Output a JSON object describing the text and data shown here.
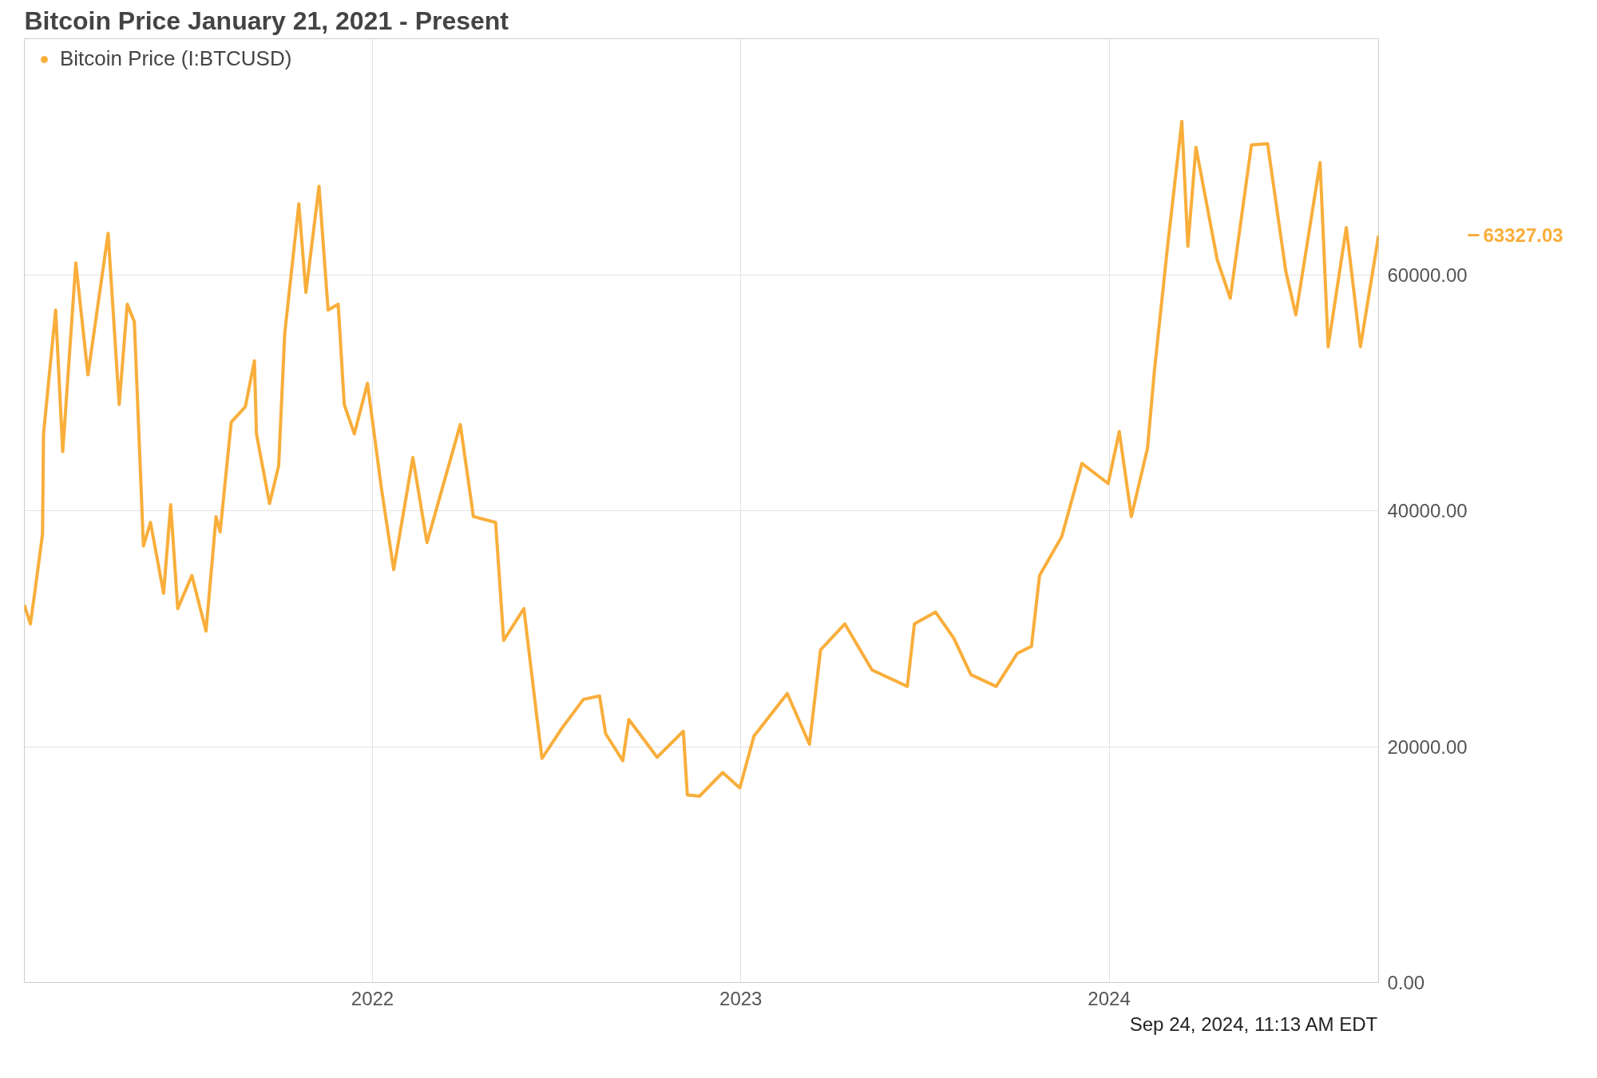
{
  "chart_data": {
    "type": "line",
    "title": "Bitcoin Price January 21, 2021 - Present",
    "x": [
      "2021-01-21",
      "2021-01-27",
      "2021-02-01",
      "2021-02-08",
      "2021-02-09",
      "2021-02-21",
      "2021-02-28",
      "2021-03-13",
      "2021-03-25",
      "2021-04-14",
      "2021-04-25",
      "2021-05-03",
      "2021-05-10",
      "2021-05-19",
      "2021-05-26",
      "2021-06-08",
      "2021-06-15",
      "2021-06-22",
      "2021-07-06",
      "2021-07-20",
      "2021-07-30",
      "2021-08-03",
      "2021-08-14",
      "2021-08-28",
      "2021-09-06",
      "2021-09-08",
      "2021-09-21",
      "2021-09-30",
      "2021-10-06",
      "2021-10-20",
      "2021-10-27",
      "2021-11-09",
      "2021-11-18",
      "2021-11-28",
      "2021-12-04",
      "2021-12-14",
      "2021-12-27",
      "2022-01-10",
      "2022-01-22",
      "2022-02-10",
      "2022-02-24",
      "2022-03-29",
      "2022-04-11",
      "2022-05-03",
      "2022-05-11",
      "2022-05-31",
      "2022-06-13",
      "2022-06-18",
      "2022-07-08",
      "2022-07-29",
      "2022-08-14",
      "2022-08-20",
      "2022-09-06",
      "2022-09-12",
      "2022-10-10",
      "2022-11-05",
      "2022-11-09",
      "2022-11-21",
      "2022-12-14",
      "2022-12-31",
      "2023-01-14",
      "2023-02-16",
      "2023-03-10",
      "2023-03-21",
      "2023-04-14",
      "2023-05-11",
      "2023-06-15",
      "2023-06-22",
      "2023-07-13",
      "2023-07-31",
      "2023-08-17",
      "2023-09-11",
      "2023-10-02",
      "2023-10-16",
      "2023-10-24",
      "2023-11-15",
      "2023-12-05",
      "2023-12-31",
      "2024-01-11",
      "2024-01-23",
      "2024-02-08",
      "2024-02-15",
      "2024-02-28",
      "2024-03-13",
      "2024-03-19",
      "2024-03-27",
      "2024-04-17",
      "2024-04-30",
      "2024-05-21",
      "2024-06-06",
      "2024-06-24",
      "2024-07-04",
      "2024-07-28",
      "2024-08-05",
      "2024-08-23",
      "2024-09-06",
      "2024-09-24"
    ],
    "series": [
      {
        "name": "Bitcoin Price (I:BTCUSD)",
        "color": "#f9ae3b",
        "values": [
          32000,
          30400,
          33500,
          38000,
          46500,
          57000,
          45000,
          61000,
          51500,
          63500,
          49000,
          57500,
          56000,
          37000,
          39000,
          33000,
          40500,
          31700,
          34500,
          29800,
          39500,
          38200,
          47500,
          48800,
          52700,
          46500,
          40600,
          43800,
          55000,
          66000,
          58500,
          67500,
          57000,
          57500,
          49000,
          46500,
          50800,
          41800,
          35000,
          44500,
          37300,
          47300,
          39500,
          39000,
          29000,
          31700,
          22400,
          19000,
          21600,
          24000,
          24300,
          21100,
          18800,
          22300,
          19100,
          21300,
          15900,
          15800,
          17800,
          16500,
          20900,
          24500,
          20200,
          28200,
          30400,
          26500,
          25100,
          30400,
          31400,
          29200,
          26100,
          25100,
          27900,
          28500,
          34500,
          37800,
          44000,
          42300,
          46700,
          39500,
          45300,
          52000,
          62500,
          73000,
          62400,
          70800,
          61300,
          58000,
          71000,
          71100,
          60300,
          56600,
          69500,
          53900,
          64000,
          53900,
          63327.03
        ]
      }
    ],
    "xlim": [
      "2021-01-21",
      "2024-09-24"
    ],
    "xticks": [
      {
        "value": "2022-01-01",
        "label": "2022"
      },
      {
        "value": "2023-01-01",
        "label": "2023"
      },
      {
        "value": "2024-01-01",
        "label": "2024"
      }
    ],
    "ylim": [
      0,
      80000
    ],
    "yticks": [
      {
        "value": 0,
        "label": "0.00"
      },
      {
        "value": 20000,
        "label": "20000.00"
      },
      {
        "value": 40000,
        "label": "40000.00"
      },
      {
        "value": 60000,
        "label": "60000.00"
      }
    ],
    "grid": true,
    "legend": "top left",
    "marker": "none",
    "line_style": "solid",
    "annotations": [
      "63327.03",
      "Sep 24, 2024, 11:13 AM EDT"
    ]
  }
}
